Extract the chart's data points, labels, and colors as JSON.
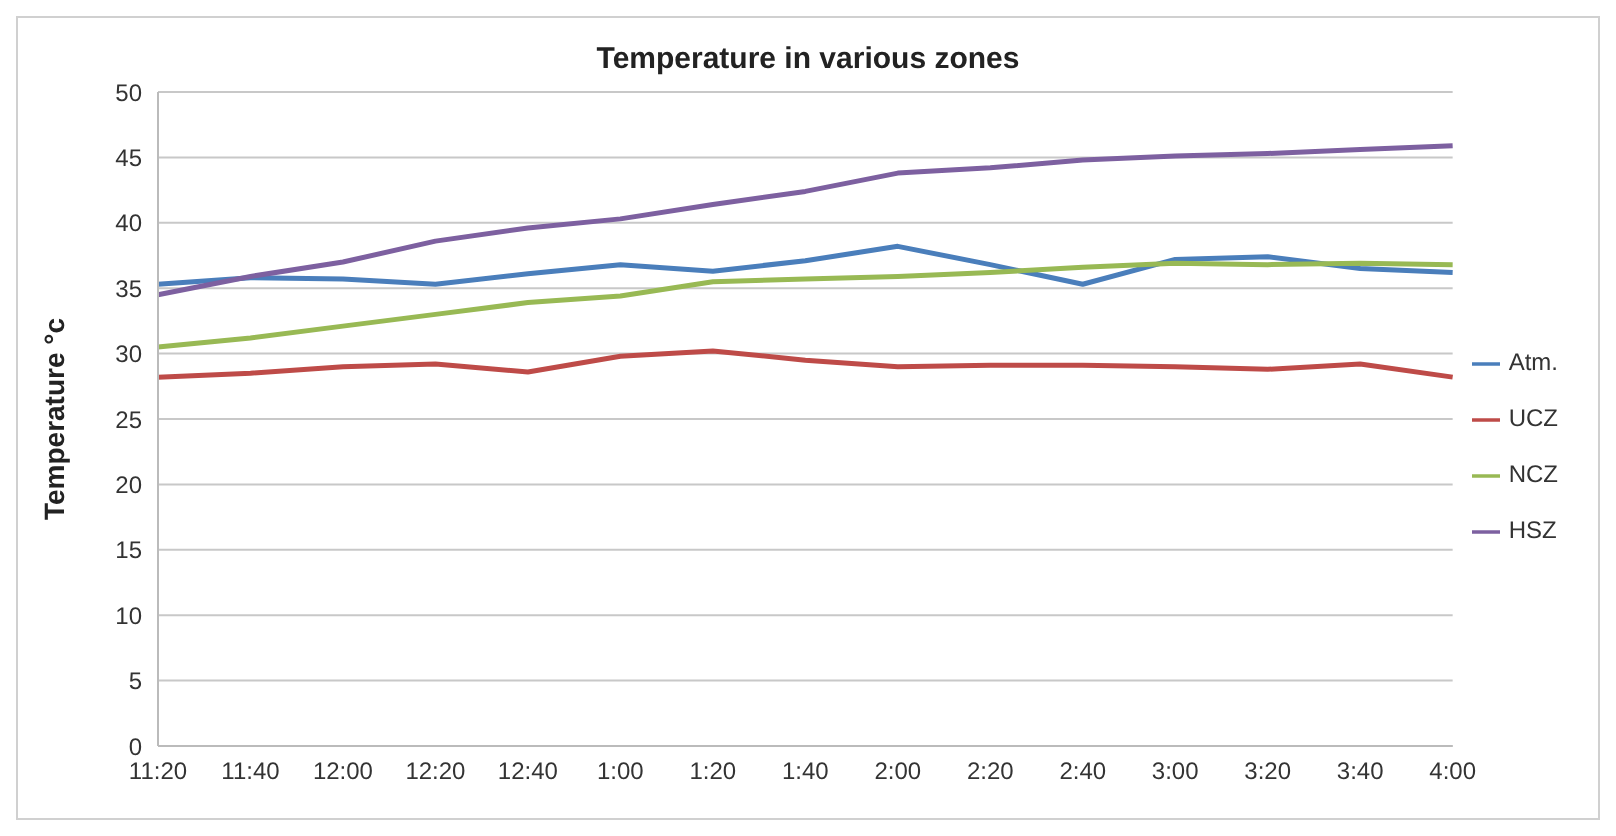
{
  "chart_data": {
    "type": "line",
    "title": "Temperature in various zones",
    "ylabel": "Temperature °c",
    "categories": [
      "11:20",
      "11:40",
      "12:00",
      "12:20",
      "12:40",
      "1:00",
      "1:20",
      "1:40",
      "2:00",
      "2:20",
      "2:40",
      "3:00",
      "3:20",
      "3:40",
      "4:00"
    ],
    "series": [
      {
        "name": "Atm.",
        "color": "#4a7ebb",
        "values": [
          35.3,
          35.8,
          35.7,
          35.3,
          36.1,
          36.8,
          36.3,
          37.1,
          38.2,
          36.8,
          35.3,
          37.2,
          37.4,
          36.5,
          36.2
        ]
      },
      {
        "name": "UCZ",
        "color": "#be4b48",
        "values": [
          28.2,
          28.5,
          29.0,
          29.2,
          28.6,
          29.8,
          30.2,
          29.5,
          29.0,
          29.1,
          29.1,
          29.0,
          28.8,
          29.2,
          28.2
        ]
      },
      {
        "name": "NCZ",
        "color": "#98b954",
        "values": [
          30.5,
          31.2,
          32.1,
          33.0,
          33.9,
          34.4,
          35.5,
          35.7,
          35.9,
          36.2,
          36.6,
          36.9,
          36.8,
          36.9,
          36.8
        ]
      },
      {
        "name": "HSZ",
        "color": "#7d60a0",
        "values": [
          34.5,
          35.9,
          37.0,
          38.6,
          39.6,
          40.3,
          41.4,
          42.4,
          43.8,
          44.2,
          44.8,
          45.1,
          45.3,
          45.6,
          45.9
        ]
      }
    ],
    "ylim": [
      0,
      50
    ],
    "yticks": [
      0,
      5,
      10,
      15,
      20,
      25,
      30,
      35,
      40,
      45,
      50
    ],
    "grid": "y",
    "legend": "right",
    "marker": "none",
    "line_style": "solid"
  }
}
